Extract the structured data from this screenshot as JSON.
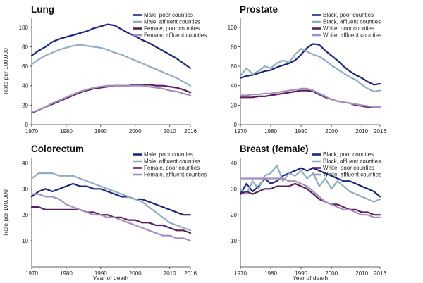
{
  "axis_labels": {
    "y": "Rate per 100,000",
    "x": "Year of death"
  },
  "colors": {
    "dark_navy": "#1c2680",
    "light_blue": "#8eaec4",
    "dark_purple": "#5b1f5b",
    "light_purple": "#a58fc2"
  },
  "chart_data": [
    {
      "type": "line",
      "title": "Lung",
      "xlim": [
        1970,
        2016
      ],
      "ylim": [
        0,
        110
      ],
      "xticks": [
        "1970",
        "1980",
        "1990",
        "2000",
        "2010",
        "2016"
      ],
      "yticks": [
        "0",
        "20",
        "40",
        "60",
        "80",
        "100"
      ],
      "legend": "top-right",
      "x": [
        1970,
        1972,
        1974,
        1976,
        1978,
        1980,
        1982,
        1984,
        1986,
        1988,
        1990,
        1992,
        1994,
        1996,
        1998,
        2000,
        2002,
        2004,
        2006,
        2008,
        2010,
        2012,
        2014,
        2016
      ],
      "series": [
        {
          "name": "Male",
          "suffix": ", poor counties",
          "color": "#1c2680",
          "values": [
            71,
            76,
            80,
            85,
            88,
            90,
            92,
            94,
            96,
            99,
            101,
            103,
            102,
            98,
            94,
            91,
            87,
            84,
            80,
            76,
            72,
            68,
            63,
            58
          ]
        },
        {
          "name": "Male",
          "suffix": ", affluent counties",
          "color": "#8eaec4",
          "values": [
            62,
            67,
            71,
            74,
            77,
            79,
            81,
            82,
            81,
            80,
            79,
            77,
            74,
            72,
            69,
            66,
            63,
            60,
            57,
            54,
            51,
            48,
            44,
            40
          ]
        },
        {
          "name": "Female",
          "suffix": ", poor counties",
          "color": "#5b1f5b",
          "values": [
            12,
            15,
            18,
            21,
            24,
            27,
            30,
            33,
            35,
            37,
            38,
            39,
            40,
            40,
            40,
            41,
            41,
            41,
            40,
            40,
            39,
            38,
            36,
            33
          ]
        },
        {
          "name": "Female",
          "suffix": ", affluent counties",
          "color": "#a58fc2",
          "values": [
            13,
            15,
            18,
            22,
            25,
            28,
            31,
            34,
            36,
            38,
            39,
            40,
            40,
            40,
            40,
            40,
            40,
            39,
            38,
            37,
            35,
            34,
            32,
            30
          ]
        }
      ]
    },
    {
      "type": "line",
      "title": "Prostate",
      "xlim": [
        1970,
        2016
      ],
      "ylim": [
        0,
        110
      ],
      "xticks": [
        "1970",
        "1980",
        "1990",
        "2000",
        "2010",
        "2016"
      ],
      "yticks": [
        "0",
        "20",
        "40",
        "60",
        "80",
        "100"
      ],
      "legend": "top-right",
      "x": [
        1970,
        1972,
        1974,
        1976,
        1978,
        1980,
        1982,
        1984,
        1986,
        1988,
        1990,
        1992,
        1994,
        1996,
        1998,
        2000,
        2002,
        2004,
        2006,
        2008,
        2010,
        2012,
        2014,
        2016
      ],
      "series": [
        {
          "name": "Black",
          "suffix": ", poor counties",
          "color": "#1c2680",
          "values": [
            48,
            50,
            51,
            53,
            55,
            56,
            59,
            61,
            63,
            66,
            72,
            79,
            83,
            82,
            76,
            71,
            66,
            60,
            55,
            51,
            48,
            44,
            41,
            42
          ]
        },
        {
          "name": "Black",
          "suffix": ", affluent counties",
          "color": "#8eaec4",
          "values": [
            50,
            58,
            52,
            55,
            60,
            58,
            63,
            66,
            64,
            72,
            78,
            75,
            72,
            70,
            66,
            61,
            57,
            53,
            49,
            46,
            41,
            37,
            34,
            35
          ]
        },
        {
          "name": "White",
          "suffix": ", poor counties",
          "color": "#5b1f5b",
          "values": [
            28,
            28,
            28,
            29,
            29,
            30,
            31,
            32,
            33,
            34,
            35,
            35,
            34,
            31,
            28,
            26,
            24,
            23,
            22,
            20,
            19,
            18,
            18,
            18
          ]
        },
        {
          "name": "White",
          "suffix": ", affluent counties",
          "color": "#a58fc2",
          "values": [
            30,
            30,
            31,
            31,
            32,
            32,
            33,
            34,
            35,
            36,
            37,
            37,
            35,
            32,
            29,
            26,
            24,
            23,
            22,
            21,
            20,
            19,
            18,
            18
          ]
        }
      ]
    },
    {
      "type": "line",
      "title": "Colorectum",
      "xlim": [
        1970,
        2016
      ],
      "ylim": [
        0,
        42
      ],
      "xticks": [
        "1970",
        "1980",
        "1990",
        "2000",
        "2010",
        "2016"
      ],
      "yticks": [
        "10",
        "20",
        "30",
        "40"
      ],
      "legend": "top-right",
      "x": [
        1970,
        1972,
        1974,
        1976,
        1978,
        1980,
        1982,
        1984,
        1986,
        1988,
        1990,
        1992,
        1994,
        1996,
        1998,
        2000,
        2002,
        2004,
        2006,
        2008,
        2010,
        2012,
        2014,
        2016
      ],
      "series": [
        {
          "name": "Male",
          "suffix": ", poor counties",
          "color": "#1c2680",
          "values": [
            27,
            29,
            30,
            29,
            30,
            31,
            32,
            31,
            31,
            30,
            30,
            29,
            28,
            27,
            27,
            26,
            26,
            25,
            24,
            23,
            22,
            21,
            20,
            20
          ]
        },
        {
          "name": "Male",
          "suffix": ", affluent counties",
          "color": "#8eaec4",
          "values": [
            34,
            36,
            36,
            36,
            35,
            35,
            35,
            34,
            33,
            32,
            31,
            30,
            29,
            28,
            27,
            26,
            25,
            23,
            21,
            19,
            17,
            16,
            15,
            14
          ]
        },
        {
          "name": "Female",
          "suffix": ", poor counties",
          "color": "#5b1f5b",
          "values": [
            23,
            23,
            22,
            22,
            22,
            22,
            22,
            22,
            21,
            21,
            20,
            20,
            19,
            19,
            18,
            18,
            17,
            17,
            16,
            16,
            15,
            14,
            14,
            13
          ]
        },
        {
          "name": "Female",
          "suffix": ", affluent counties",
          "color": "#a58fc2",
          "values": [
            28,
            28,
            27,
            27,
            26,
            24,
            23,
            22,
            21,
            20,
            20,
            19,
            19,
            18,
            17,
            16,
            15,
            14,
            13,
            12,
            12,
            11,
            11,
            10
          ]
        }
      ]
    },
    {
      "type": "line",
      "title": "Breast (female)",
      "xlim": [
        1970,
        2016
      ],
      "ylim": [
        0,
        42
      ],
      "xticks": [
        "1970",
        "1980",
        "1990",
        "2000",
        "2010",
        "2016"
      ],
      "yticks": [
        "10",
        "20",
        "30",
        "40"
      ],
      "legend": "top-right",
      "x": [
        1970,
        1972,
        1974,
        1976,
        1978,
        1980,
        1982,
        1984,
        1986,
        1988,
        1990,
        1992,
        1994,
        1996,
        1998,
        2000,
        2002,
        2004,
        2006,
        2008,
        2010,
        2012,
        2014,
        2016
      ],
      "series": [
        {
          "name": "Black",
          "suffix": ", poor counties",
          "color": "#1c2680",
          "values": [
            28,
            32,
            29,
            31,
            34,
            32,
            33,
            35,
            36,
            37,
            38,
            37,
            38,
            37,
            36,
            35,
            34,
            33,
            33,
            32,
            31,
            30,
            29,
            27
          ]
        },
        {
          "name": "Black",
          "suffix": ", affluent counties",
          "color": "#8eaec4",
          "values": [
            30,
            28,
            33,
            30,
            35,
            36,
            39,
            33,
            36,
            35,
            37,
            34,
            36,
            31,
            34,
            30,
            33,
            31,
            29,
            28,
            27,
            26,
            25,
            26
          ]
        },
        {
          "name": "White",
          "suffix": ", poor counties",
          "color": "#5b1f5b",
          "values": [
            28,
            29,
            28,
            29,
            30,
            30,
            31,
            31,
            31,
            32,
            31,
            30,
            28,
            26,
            25,
            24,
            24,
            23,
            22,
            22,
            21,
            21,
            20,
            20
          ]
        },
        {
          "name": "White",
          "suffix": ", affluent counties",
          "color": "#a58fc2",
          "values": [
            34,
            34,
            34,
            34,
            34,
            34,
            34,
            34,
            33,
            33,
            32,
            31,
            29,
            27,
            25,
            24,
            23,
            22,
            22,
            21,
            20,
            20,
            19,
            19
          ]
        }
      ]
    }
  ]
}
